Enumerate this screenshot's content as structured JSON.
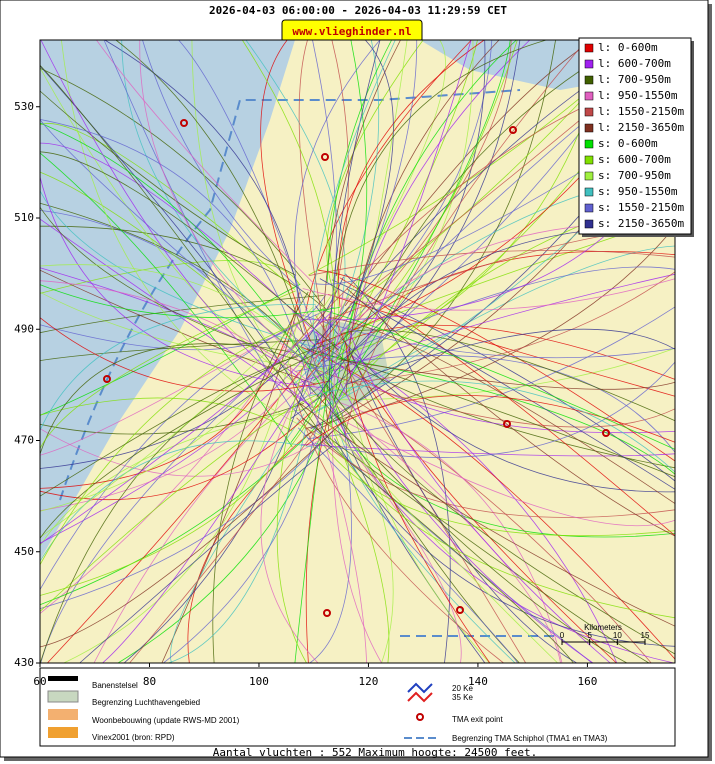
{
  "header": {
    "title": "2026-04-03 06:00:00 - 2026-04-03 11:29:59 CET",
    "site": "www.vlieghinder.nl"
  },
  "map": {
    "xlim": [
      60,
      176
    ],
    "ylim": [
      430,
      542
    ],
    "xticks": [
      60,
      80,
      100,
      120,
      140,
      160
    ],
    "yticks": [
      430,
      450,
      470,
      490,
      510,
      530
    ]
  },
  "legend": [
    {
      "label": "l: 0-600m",
      "color": "#e00000"
    },
    {
      "label": "l: 600-700m",
      "color": "#a020f0"
    },
    {
      "label": "l: 700-950m",
      "color": "#406000"
    },
    {
      "label": "l: 950-1550m",
      "color": "#e060c0"
    },
    {
      "label": "l: 1550-2150m",
      "color": "#c04848"
    },
    {
      "label": "l: 2150-3650m",
      "color": "#803020"
    },
    {
      "label": "s: 0-600m",
      "color": "#00e000"
    },
    {
      "label": "s: 600-700m",
      "color": "#80e000"
    },
    {
      "label": "s: 700-950m",
      "color": "#a0f040"
    },
    {
      "label": "s: 950-1550m",
      "color": "#40c0c0"
    },
    {
      "label": "s: 1550-2150m",
      "color": "#6060d0"
    },
    {
      "label": "s: 2150-3650m",
      "color": "#303090"
    }
  ],
  "bottom_legend": {
    "runways": "Banenstelsel",
    "airport_boundary": "Begrenzing Luchthavengebied",
    "housing": "Woonbebouwing (update RWS-MD 2001)",
    "vinex": "Vinex2001 (bron: RPD)",
    "ke20": "20 Ke",
    "ke35": "35 Ke",
    "exit_point": "TMA exit point",
    "tma_boundary": "Begrenzing TMA Schiphol  (TMA1 en TMA3)"
  },
  "scale_bar": {
    "title": "Kilometers",
    "ticks": [
      0,
      5,
      10,
      15
    ]
  },
  "footer": "Aantal vluchten : 552 Maximum hoogte: 24500 feet."
}
